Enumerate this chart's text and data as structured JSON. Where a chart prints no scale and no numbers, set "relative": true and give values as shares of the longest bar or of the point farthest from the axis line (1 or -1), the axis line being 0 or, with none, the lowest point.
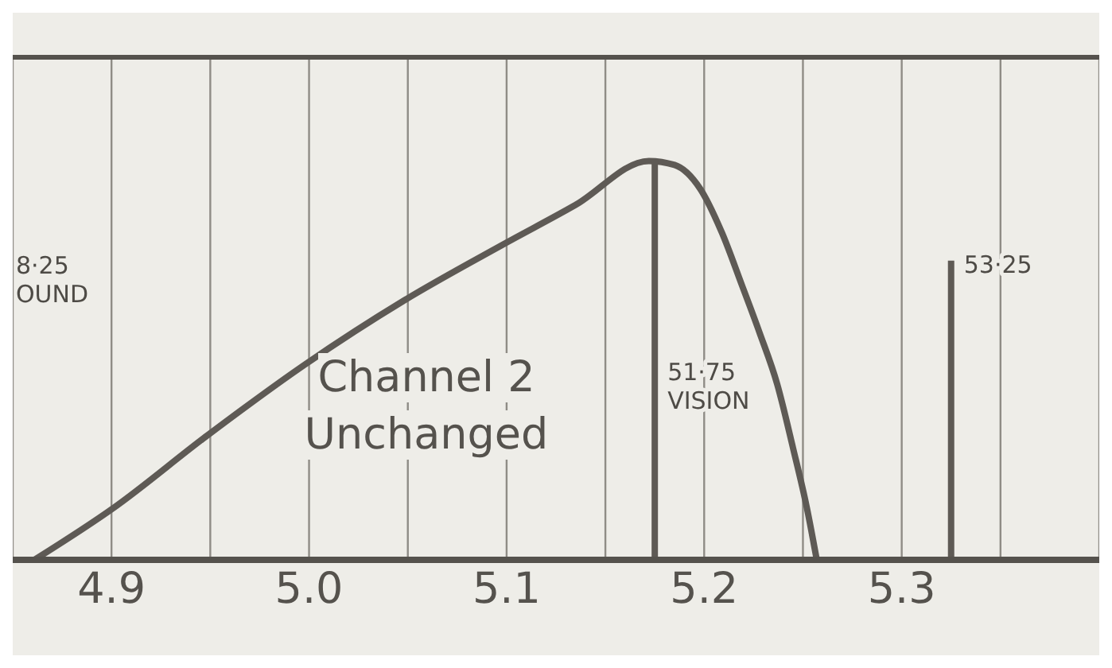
{
  "chart_data": {
    "type": "line",
    "relative": true,
    "series": [
      {
        "color": "#5e5a55",
        "x": [
          4.861,
          4.901,
          4.948,
          4.998,
          5.048,
          5.098,
          5.135,
          5.172,
          5.185,
          5.198,
          5.209,
          5.219,
          5.228,
          5.237,
          5.245,
          5.252,
          5.257
        ],
        "values": [
          0,
          0.13,
          0.31,
          0.49,
          0.65,
          0.79,
          0.89,
          1,
          0.99,
          0.93,
          0.82,
          0.69,
          0.57,
          0.44,
          0.28,
          0.13,
          0
        ]
      },
      {
        "color": "#5e5a55",
        "x": [
          5.175,
          5.175
        ],
        "values": [
          0,
          1
        ]
      },
      {
        "color": "#5e5a55",
        "x": [
          5.325,
          5.325
        ],
        "values": [
          0,
          0.75
        ]
      }
    ],
    "xlim": [
      4.85,
      5.4
    ],
    "xticks": [
      {
        "value": 4.9,
        "label": "4.9"
      },
      {
        "value": 4.95,
        "label": null
      },
      {
        "value": 5.0,
        "label": "5.0"
      },
      {
        "value": 5.05,
        "label": null
      },
      {
        "value": 5.1,
        "label": "5.1"
      },
      {
        "value": 5.15,
        "label": null
      },
      {
        "value": 5.2,
        "label": "5.2"
      },
      {
        "value": 5.25,
        "label": null
      },
      {
        "value": 5.3,
        "label": "5.3"
      },
      {
        "value": 5.35,
        "label": null
      },
      {
        "value": 5.4,
        "label": null
      }
    ],
    "grid": "x",
    "marker": "none",
    "line_style": "solid",
    "annotations": [
      "Channel 2 Unchanged",
      {
        "text": "51·75 VISION",
        "x": 5.175,
        "y": 0.45
      },
      {
        "text": "53·25",
        "x": 5.325,
        "y": 0.72
      },
      "8·25 OUND"
    ]
  }
}
